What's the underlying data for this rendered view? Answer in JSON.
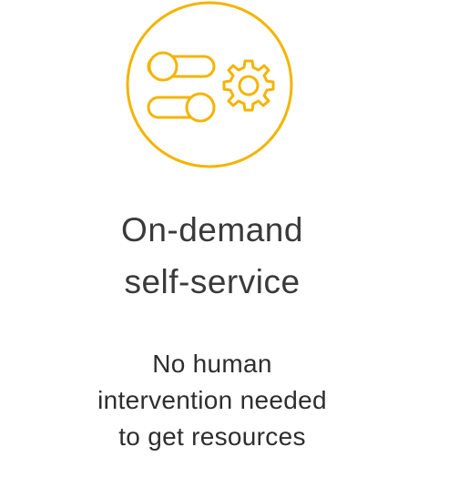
{
  "card": {
    "title_lines": [
      "On-demand",
      "self-service"
    ],
    "description_lines": [
      "No human",
      "intervention needed",
      "to get resources"
    ],
    "icon": "toggle-sliders-gear-icon",
    "accent_color": "#f4b400"
  }
}
